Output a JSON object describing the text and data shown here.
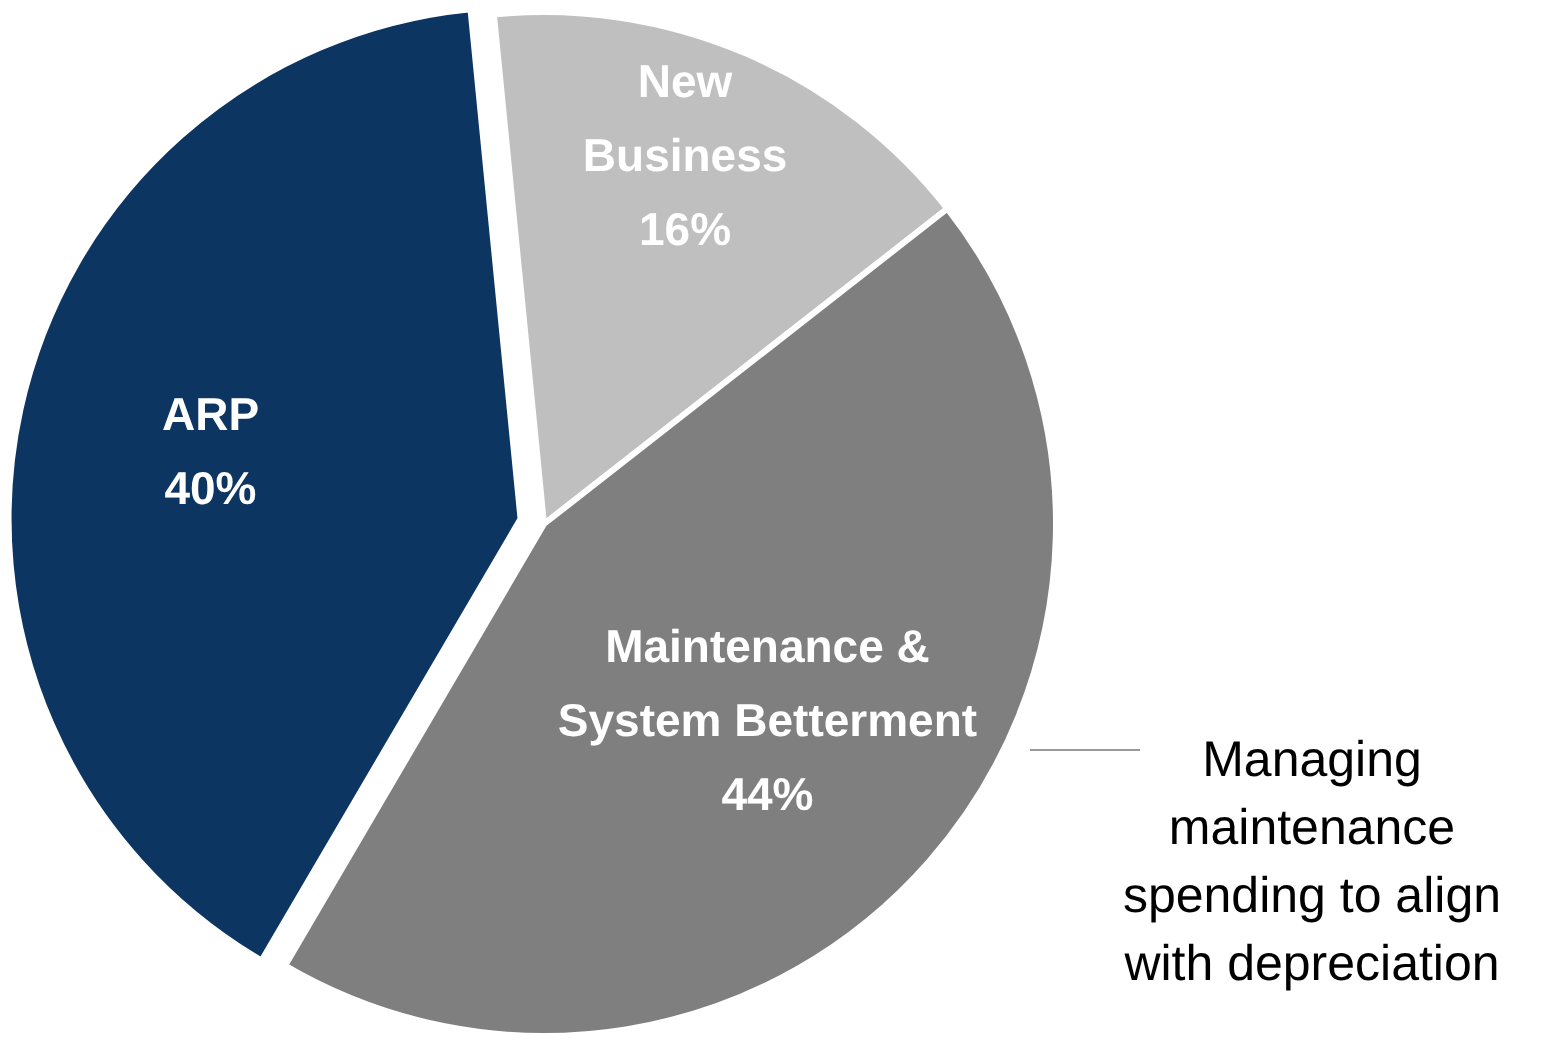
{
  "chart_data": {
    "type": "pie",
    "categories": [
      "New Business",
      "Maintenance & System Betterment",
      "ARP"
    ],
    "values": [
      16,
      44,
      40
    ],
    "colors": [
      "#bfbfbf",
      "#7f7f7f",
      "#0d3561"
    ],
    "value_labels": [
      "16%",
      "44%",
      "40%"
    ],
    "annotations": [
      "Managing maintenance spending to align with depreciation"
    ]
  }
}
